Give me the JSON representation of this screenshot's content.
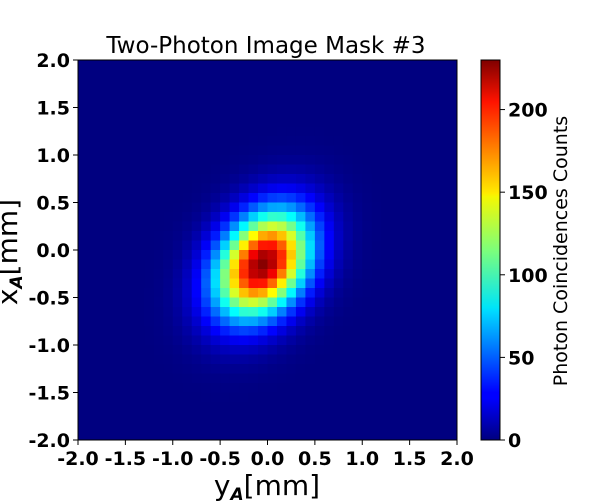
{
  "chart_data": {
    "type": "heatmap",
    "title": "Two-Photon Image Mask #3",
    "xlabel_main": "y",
    "xlabel_sub": "A",
    "xlabel_unit": "[mm]",
    "ylabel_main": "x",
    "ylabel_sub": "A",
    "ylabel_unit": "[mm]",
    "xlim": [
      -2.0,
      2.0
    ],
    "ylim": [
      -2.0,
      2.0
    ],
    "xticks": [
      "-2.0",
      "-1.5",
      "-1.0",
      "-0.5",
      "0.0",
      "0.5",
      "1.0",
      "1.5",
      "2.0"
    ],
    "yticks": [
      "2.0",
      "1.5",
      "1.0",
      "0.5",
      "0.0",
      "-0.5",
      "-1.0",
      "-1.5",
      "-2.0"
    ],
    "grid_size": 40,
    "colorbar": {
      "label": "Photon Coincidences Counts",
      "range": [
        0,
        230
      ],
      "ticks": [
        "0",
        "50",
        "100",
        "150",
        "200"
      ],
      "colormap": "jet"
    },
    "distribution": {
      "center_y_mm": -0.05,
      "center_x_mm": -0.15,
      "sigma_along_mm": 0.42,
      "sigma_across_mm": 0.3,
      "tilt_deg": 55,
      "peak_count": 228,
      "background_count": 0
    }
  }
}
